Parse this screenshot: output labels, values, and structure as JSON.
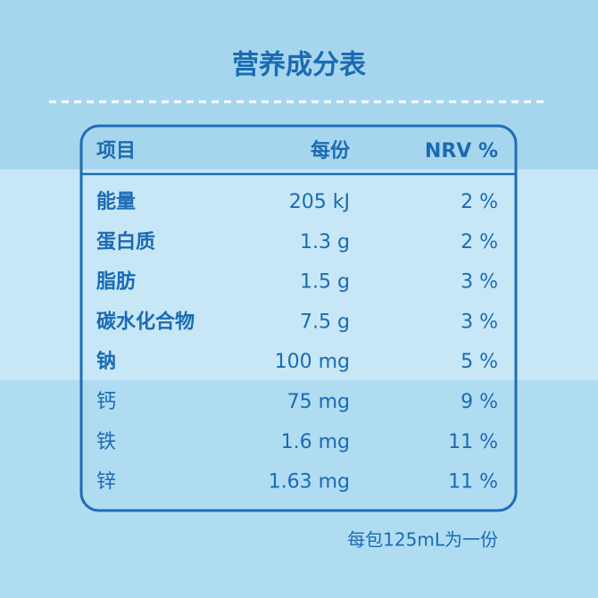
{
  "title": "营养成分表",
  "table": {
    "headers": [
      "项目",
      "每份",
      "NRV %"
    ],
    "rows": [
      [
        "能量",
        "205 kJ",
        "2 %"
      ],
      [
        "蛋白质",
        "1.3 g",
        "2 %"
      ],
      [
        "脂肪",
        "1.5 g",
        "3 %"
      ],
      [
        "碳水化合物",
        "7.5 g",
        "3 %"
      ],
      [
        "钠",
        "100 mg",
        "5 %"
      ],
      [
        "钙",
        "75 mg",
        "9 %"
      ],
      [
        "铁",
        "1.6 mg",
        "11 %"
      ],
      [
        "锌",
        "1.63 mg",
        "11 %"
      ]
    ]
  },
  "note": "每包125mL为一份"
}
